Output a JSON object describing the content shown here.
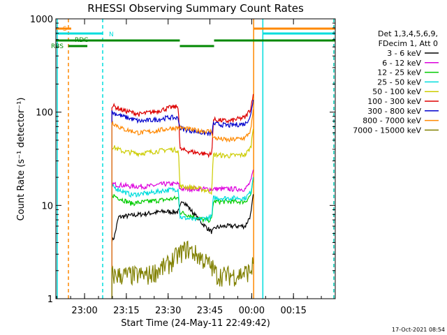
{
  "chart_data": {
    "type": "line",
    "title": "RHESSI Observing Summary Count Rates",
    "xlabel": "Start Time (24-May-11 22:49:42)",
    "ylabel": "Count Rate (s⁻¹ detector⁻¹)",
    "yscale": "log",
    "ylim": [
      1,
      1000
    ],
    "xlim": [
      "22:49:42",
      "00:30:00"
    ],
    "x_unit": "minutes after 22:49:42",
    "xlim_minutes": [
      0,
      100.3
    ],
    "x_ticks": [
      {
        "label": "23:00",
        "minutes": 10.3
      },
      {
        "label": "23:15",
        "minutes": 25.3
      },
      {
        "label": "23:30",
        "minutes": 40.3
      },
      {
        "label": "23:45",
        "minutes": 55.3
      },
      {
        "label": "00:00",
        "minutes": 70.3
      },
      {
        "label": "00:15",
        "minutes": 85.3
      }
    ],
    "y_ticks": [
      {
        "label": "1",
        "value": 1
      },
      {
        "label": "10",
        "value": 10
      },
      {
        "label": "100",
        "value": 100
      },
      {
        "label": "1000",
        "value": 1000
      }
    ],
    "legend_header": [
      "Det 1,3,4,5,6,9,",
      "FDecim 1, Att 0"
    ],
    "legend_position": "right",
    "series": [
      {
        "name": "3 - 6 keV",
        "color": "#000000",
        "x": [
          20.1,
          21.0,
          22.5,
          27,
          33,
          39,
          44,
          45.5,
          49,
          53,
          56,
          57.5,
          61,
          65,
          68,
          70,
          71
        ],
        "y": [
          4.2,
          4.6,
          7.5,
          7.8,
          8.2,
          8.6,
          8.5,
          11.5,
          8.5,
          6.2,
          5.2,
          5.8,
          6.0,
          6.0,
          6.0,
          8.0,
          14
        ]
      },
      {
        "name": "6 - 12 keV",
        "color": "#dd00dd",
        "x": [
          20.1,
          27,
          33,
          39,
          44,
          44.5,
          50,
          56,
          56.5,
          62,
          68,
          70,
          71
        ],
        "y": [
          17,
          16,
          16,
          17,
          17,
          15,
          15,
          15,
          15,
          15,
          15,
          18,
          25
        ]
      },
      {
        "name": "12 - 25 keV",
        "color": "#00cc00",
        "x": [
          20.1,
          27,
          33,
          39,
          44,
          44.5,
          47,
          50,
          53,
          56,
          56.5,
          62,
          68,
          70,
          71
        ],
        "y": [
          13,
          10.5,
          11,
          11.5,
          12,
          8.5,
          8,
          7.5,
          7,
          7,
          11,
          11,
          11,
          13,
          20
        ]
      },
      {
        "name": "25 - 50 keV",
        "color": "#00dddd",
        "x": [
          20.1,
          27,
          33,
          39,
          44,
          44.5,
          50,
          56,
          56.5,
          62,
          68,
          70,
          71
        ],
        "y": [
          16,
          13,
          13.5,
          14.5,
          15,
          7.5,
          7,
          7.5,
          12,
          12,
          12,
          14,
          22
        ]
      },
      {
        "name": "50 - 100 keV",
        "color": "#cccc00",
        "x": [
          20.1,
          24,
          30,
          36,
          41,
          44,
          44.5,
          50,
          56,
          56.5,
          62,
          68,
          70,
          71
        ],
        "y": [
          43,
          38,
          36,
          38,
          40,
          39,
          16,
          15.5,
          14,
          35,
          34,
          35,
          42,
          75
        ]
      },
      {
        "name": "100 - 300 keV",
        "color": "#dd0000",
        "x": [
          20.1,
          24,
          30,
          36,
          41,
          44,
          44.5,
          50,
          56,
          56.5,
          62,
          68,
          70,
          71
        ],
        "y": [
          118,
          105,
          95,
          102,
          112,
          115,
          40,
          37,
          35,
          83,
          80,
          88,
          110,
          175
        ]
      },
      {
        "name": "300 - 800 keV",
        "color": "#0000cc",
        "x": [
          20.1,
          24,
          30,
          36,
          41,
          44,
          44.5,
          50,
          56,
          56.5,
          62,
          68,
          70,
          71
        ],
        "y": [
          100,
          90,
          80,
          83,
          88,
          86,
          67,
          62,
          58,
          75,
          72,
          75,
          92,
          150
        ]
      },
      {
        "name": "800 - 7000 keV",
        "color": "#ff8800",
        "x": [
          20.1,
          24,
          30,
          36,
          41,
          44,
          44.5,
          50,
          56,
          56.5,
          62,
          68,
          70,
          71
        ],
        "y": [
          78,
          66,
          60,
          63,
          67,
          68,
          68,
          64,
          62,
          53,
          50,
          53,
          64,
          115
        ]
      },
      {
        "name": "7000 - 15000 keV",
        "color": "#808000",
        "x": [
          20.1,
          25,
          33,
          40,
          44,
          47,
          52,
          56,
          58,
          65,
          70,
          71
        ],
        "y": [
          1.8,
          1.8,
          1.8,
          2.3,
          3.0,
          3.5,
          2.8,
          2.2,
          1.8,
          1.8,
          2.0,
          2.5
        ]
      }
    ],
    "flag_bars": [
      {
        "label": "S",
        "color": "#ff8800",
        "segments": [
          [
            0,
            5.5
          ],
          [
            71,
            100.3
          ]
        ]
      },
      {
        "label": "N",
        "color": "#00dddd",
        "segments": [
          [
            0,
            16.8
          ],
          [
            74.3,
            100.3
          ]
        ]
      },
      {
        "label": "RDC",
        "color": "#008800",
        "segments": [
          [
            0,
            44.5
          ],
          [
            56.8,
            100.3
          ]
        ]
      },
      {
        "label": "RBS",
        "color": "#008800",
        "segments": [
          [
            4.5,
            11.3
          ],
          [
            44.5,
            56.8
          ]
        ]
      }
    ],
    "vertical_markers": [
      {
        "color": "#00dddd",
        "style": "solid",
        "minutes": 0.5
      },
      {
        "color": "#ff8800",
        "style": "dashed",
        "minutes": 4.5
      },
      {
        "color": "#00dddd",
        "style": "dashed",
        "minutes": 16.8
      },
      {
        "color": "#ff8800",
        "style": "solid",
        "minutes": 71.0
      },
      {
        "color": "#00dddd",
        "style": "solid",
        "minutes": 74.3
      },
      {
        "color": "#ff8800",
        "style": "dashed",
        "minutes": 99.8
      },
      {
        "color": "#00dddd",
        "style": "dashed",
        "minutes": 99.8
      }
    ],
    "grid": false
  },
  "footer_timestamp": "17-Oct-2021 08:54"
}
